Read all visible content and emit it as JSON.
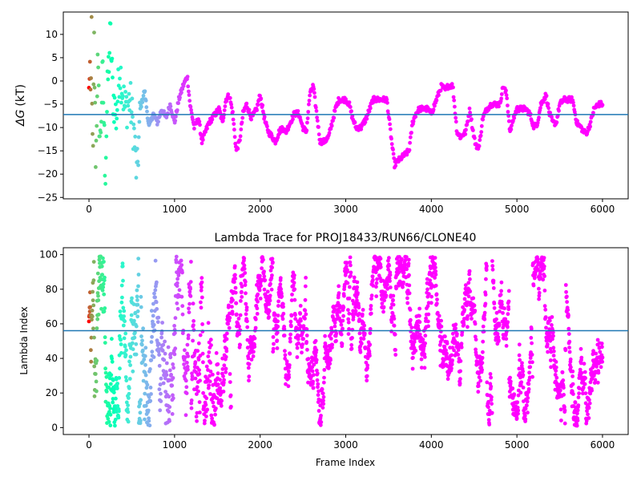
{
  "chart_data": [
    {
      "type": "scatter",
      "title": "",
      "xlabel": "",
      "ylabel": "ΔG (kT)",
      "ylabel_symbol": "ΔG",
      "ylabel_unit": "(kT)",
      "xlim": [
        -300,
        6300
      ],
      "ylim": [
        -25.3,
        14.8
      ],
      "xticks": [
        0,
        1000,
        2000,
        3000,
        4000,
        5000,
        6000
      ],
      "yticks": [
        10,
        5,
        0,
        -5,
        -10,
        -15,
        -20,
        -25
      ],
      "hline": -7.2,
      "hline_color": "#1f77b4",
      "colormap": "rainbow",
      "colormap_direction": "early frames red → late frames violet",
      "keypoints": [
        [
          0,
          -3
        ],
        [
          10,
          6
        ],
        [
          20,
          -10
        ],
        [
          30,
          12
        ],
        [
          45,
          -22
        ],
        [
          60,
          8
        ],
        [
          80,
          -18
        ],
        [
          100,
          4
        ],
        [
          130,
          -14
        ],
        [
          160,
          2
        ],
        [
          190,
          -20
        ],
        [
          220,
          0
        ],
        [
          250,
          10
        ],
        [
          280,
          -3
        ],
        [
          320,
          -8
        ],
        [
          360,
          3
        ],
        [
          420,
          -6
        ],
        [
          480,
          -4
        ],
        [
          530,
          -12
        ],
        [
          560,
          -21
        ],
        [
          600,
          -6
        ],
        [
          650,
          -2
        ],
        [
          700,
          -10
        ],
        [
          750,
          -7
        ],
        [
          800,
          -9
        ],
        [
          850,
          -6
        ],
        [
          900,
          -8
        ],
        [
          950,
          -5
        ],
        [
          1000,
          -9
        ],
        [
          1050,
          -4
        ],
        [
          1100,
          -1
        ],
        [
          1150,
          1
        ],
        [
          1180,
          -5
        ],
        [
          1230,
          -10
        ],
        [
          1280,
          -8
        ],
        [
          1320,
          -13
        ],
        [
          1360,
          -11
        ],
        [
          1400,
          -9
        ],
        [
          1440,
          -8
        ],
        [
          1480,
          -7
        ],
        [
          1520,
          -6
        ],
        [
          1560,
          -9
        ],
        [
          1600,
          -4
        ],
        [
          1640,
          -3
        ],
        [
          1680,
          -7
        ],
        [
          1720,
          -15
        ],
        [
          1760,
          -13
        ],
        [
          1800,
          -7
        ],
        [
          1840,
          -5
        ],
        [
          1900,
          -8
        ],
        [
          1960,
          -6
        ],
        [
          2000,
          -3
        ],
        [
          2060,
          -9
        ],
        [
          2100,
          -11
        ],
        [
          2140,
          -12
        ],
        [
          2180,
          -13
        ],
        [
          2220,
          -11
        ],
        [
          2260,
          -10
        ],
        [
          2300,
          -11
        ],
        [
          2350,
          -9
        ],
        [
          2400,
          -7
        ],
        [
          2450,
          -7
        ],
        [
          2500,
          -10
        ],
        [
          2540,
          -11
        ],
        [
          2580,
          -3
        ],
        [
          2620,
          -1
        ],
        [
          2660,
          -7
        ],
        [
          2700,
          -13
        ],
        [
          2750,
          -13
        ],
        [
          2800,
          -12
        ],
        [
          2840,
          -9
        ],
        [
          2880,
          -6
        ],
        [
          2920,
          -4
        ],
        [
          2960,
          -4
        ],
        [
          3000,
          -4
        ],
        [
          3040,
          -5
        ],
        [
          3080,
          -8
        ],
        [
          3120,
          -10
        ],
        [
          3180,
          -10
        ],
        [
          3240,
          -8
        ],
        [
          3280,
          -6
        ],
        [
          3320,
          -4
        ],
        [
          3360,
          -4
        ],
        [
          3400,
          -4
        ],
        [
          3450,
          -4
        ],
        [
          3480,
          -4
        ],
        [
          3530,
          -12
        ],
        [
          3570,
          -18
        ],
        [
          3620,
          -17
        ],
        [
          3680,
          -16
        ],
        [
          3740,
          -15
        ],
        [
          3780,
          -9
        ],
        [
          3820,
          -7
        ],
        [
          3860,
          -6
        ],
        [
          3900,
          -6
        ],
        [
          3950,
          -6
        ],
        [
          4000,
          -7
        ],
        [
          4040,
          -5
        ],
        [
          4080,
          -3
        ],
        [
          4120,
          -1
        ],
        [
          4160,
          -2
        ],
        [
          4200,
          -1
        ],
        [
          4250,
          -1
        ],
        [
          4300,
          -11
        ],
        [
          4340,
          -12
        ],
        [
          4400,
          -11
        ],
        [
          4450,
          -6
        ],
        [
          4480,
          -10
        ],
        [
          4520,
          -14
        ],
        [
          4560,
          -14
        ],
        [
          4600,
          -8
        ],
        [
          4650,
          -6
        ],
        [
          4700,
          -5
        ],
        [
          4760,
          -5
        ],
        [
          4800,
          -5
        ],
        [
          4840,
          -1
        ],
        [
          4880,
          -3
        ],
        [
          4920,
          -11
        ],
        [
          4960,
          -8
        ],
        [
          5000,
          -6
        ],
        [
          5050,
          -6
        ],
        [
          5100,
          -6
        ],
        [
          5150,
          -7
        ],
        [
          5200,
          -10
        ],
        [
          5240,
          -9
        ],
        [
          5280,
          -5
        ],
        [
          5340,
          -3
        ],
        [
          5380,
          -7
        ],
        [
          5420,
          -9
        ],
        [
          5460,
          -9
        ],
        [
          5500,
          -5
        ],
        [
          5550,
          -4
        ],
        [
          5600,
          -4
        ],
        [
          5650,
          -4
        ],
        [
          5700,
          -9
        ],
        [
          5750,
          -10
        ],
        [
          5780,
          -11
        ],
        [
          5820,
          -11
        ],
        [
          5860,
          -9
        ],
        [
          5900,
          -6
        ],
        [
          5950,
          -5
        ],
        [
          6000,
          -5
        ]
      ]
    },
    {
      "type": "scatter",
      "title": "Lambda Trace for PROJ18433/RUN66/CLONE40",
      "xlabel": "",
      "ylabel": "Lambda Index",
      "xlim": [
        -300,
        6300
      ],
      "ylim": [
        -4,
        104
      ],
      "xticks": [
        0,
        1000,
        2000,
        3000,
        4000,
        5000,
        6000
      ],
      "yticks": [
        0,
        20,
        40,
        60,
        80,
        100
      ],
      "hline": 56,
      "hline_color": "#1f77b4",
      "colormap": "rainbow",
      "colormap_direction": "early frames red → late frames violet",
      "x_range": [
        0,
        6000
      ],
      "y_range": [
        1,
        99
      ]
    }
  ],
  "shared_xlabel": "Frame Index"
}
